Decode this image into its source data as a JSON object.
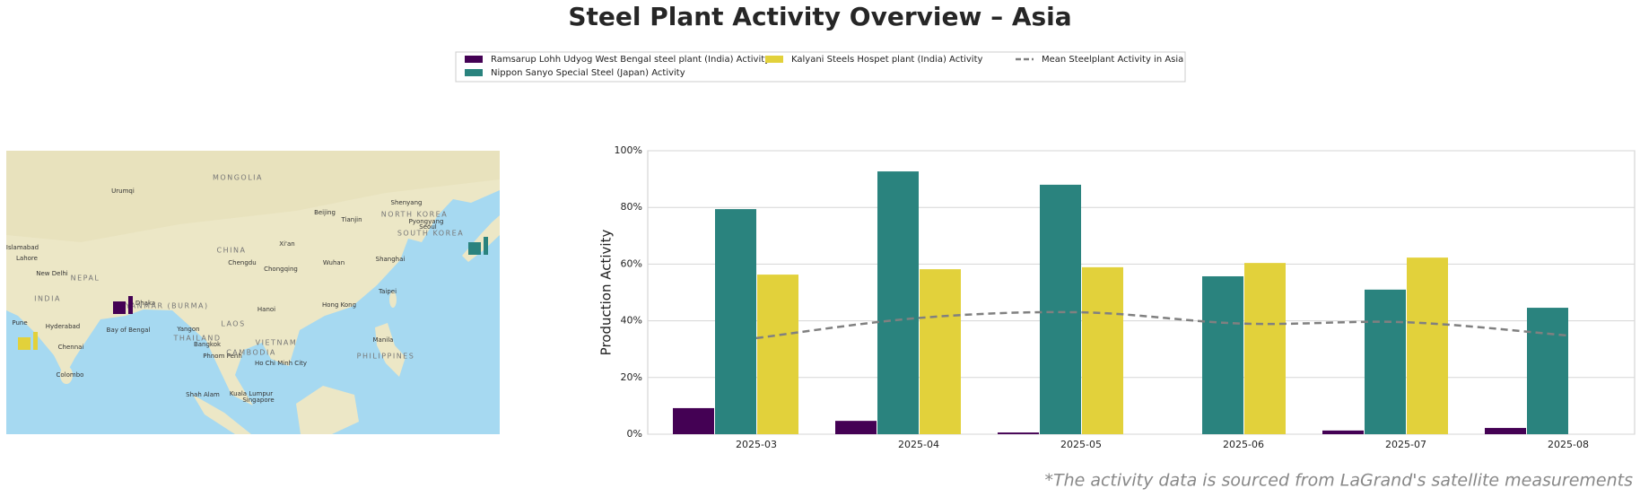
{
  "chart_data": {
    "type": "bar",
    "title": "Steel Plant Activity Overview – Asia",
    "ylabel": "Production Activity",
    "footnote": "*The activity data is sourced from LaGrand's satellite measurements",
    "categories": [
      "2025-03",
      "2025-04",
      "2025-05",
      "2025-06",
      "2025-07",
      "2025-08"
    ],
    "series": [
      {
        "name": "Ramsarup Lohh Udyog West Bengal steel plant (India) Activity",
        "color": "#440154",
        "values": [
          9.2,
          4.7,
          0.6,
          null,
          1.3,
          2.2
        ]
      },
      {
        "name": "Nippon Sanyo Special Steel (Japan) Activity",
        "color": "#2a837e",
        "values": [
          79.4,
          92.7,
          88,
          55.7,
          51,
          44.6
        ]
      },
      {
        "name": "Kalyani Steels Hospet plant (India) Activity",
        "color": "#e2d13b",
        "values": [
          56.3,
          58.2,
          58.9,
          60.4,
          62.3,
          null
        ]
      },
      {
        "name": "Mean Steelplant Activity in Asia",
        "color": "#808080",
        "style": "dashed-line",
        "values": [
          33.9,
          41,
          43,
          39,
          39.5,
          34.8
        ]
      }
    ],
    "ylim": [
      0,
      100
    ],
    "yticks": [
      {
        "value": 0,
        "label": "0%"
      },
      {
        "value": 20,
        "label": "20%"
      },
      {
        "value": 40,
        "label": "40%"
      },
      {
        "value": 60,
        "label": "60%"
      },
      {
        "value": 80,
        "label": "80%"
      },
      {
        "value": 100,
        "label": "100%"
      }
    ],
    "grid": true
  },
  "map": {
    "labels": [
      "Urumqi",
      "MONGOLIA",
      "Shenyang",
      "Beijing",
      "Tianjin",
      "NORTH KOREA",
      "Pyongyang",
      "Seoul",
      "SOUTH KOREA",
      "CHINA",
      "Xi'an",
      "Chengdu",
      "Chongqing",
      "Wuhan",
      "Shanghai",
      "Islamabad",
      "Lahore",
      "New Delhi",
      "NEPAL",
      "INDIA",
      "Dhaka",
      "MYANMAR (BURMA)",
      "Taipei",
      "Hanoi",
      "Hong Kong",
      "Pune",
      "Hyderabad",
      "Chennai",
      "Bay of Bengal",
      "Yangon",
      "LAOS",
      "THAILAND",
      "Bangkok",
      "VIETNAM",
      "Manila",
      "CAMBODIA",
      "Phnom Penh",
      "Ho Chi Minh City",
      "PHILIPPINES",
      "Colombo",
      "Shah Alam",
      "Kuala Lumpur",
      "Singapore"
    ]
  }
}
